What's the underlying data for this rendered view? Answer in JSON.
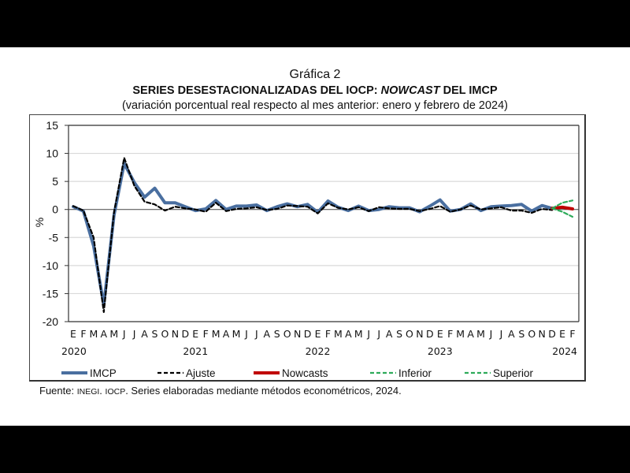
{
  "header": {
    "figure_label": "Gráfica 2",
    "title_part1": "SERIES DESESTACIONALIZADAS DEL IOCP",
    "title_colon": ": ",
    "title_italic": "NOWCAST",
    "title_part2": " DEL IMCP",
    "subtitle": "(variación porcentual real respecto al mes anterior: enero y febrero de 2024)"
  },
  "footer": {
    "source_label": "Fuente: ",
    "source_inegi": "INEGI",
    "source_sep": ". ",
    "source_iocp": "IOCP",
    "source_rest": ". Series elaboradas mediante métodos econométricos, 2024."
  },
  "colors": {
    "imcp": "#4a6fa0",
    "ajuste": "#000000",
    "nowcasts": "#c00000",
    "inferior": "#2eab5a",
    "superior": "#2eab5a",
    "grid": "#d9d9d9"
  },
  "chart_data": {
    "type": "line",
    "title": "SERIES DESESTACIONALIZADAS DEL IOCP: NOWCAST DEL IMCP",
    "ylabel": "%",
    "ylim": [
      -20,
      15
    ],
    "yticks": [
      "15",
      "10",
      "5",
      "0",
      "-5",
      "-10",
      "-15",
      "-20"
    ],
    "ytick_values": [
      15,
      10,
      5,
      0,
      -5,
      -10,
      -15,
      -20
    ],
    "grid": true,
    "legend_position": "bottom",
    "month_labels": [
      "E",
      "F",
      "M",
      "A",
      "M",
      "J",
      "J",
      "A",
      "S",
      "O",
      "N",
      "D",
      "E",
      "F",
      "M",
      "A",
      "M",
      "J",
      "J",
      "A",
      "S",
      "O",
      "N",
      "D",
      "E",
      "F",
      "M",
      "A",
      "M",
      "J",
      "J",
      "A",
      "S",
      "O",
      "N",
      "D",
      "E",
      "F",
      "M",
      "A",
      "M",
      "J",
      "J",
      "A",
      "S",
      "O",
      "N",
      "D",
      "E",
      "F"
    ],
    "year_labels": [
      {
        "label": "2020",
        "index": 0
      },
      {
        "label": "2021",
        "index": 12
      },
      {
        "label": "2022",
        "index": 24
      },
      {
        "label": "2023",
        "index": 36
      },
      {
        "label": "2024",
        "index": 49
      }
    ],
    "series": [
      {
        "name": "IMCP",
        "style": "solid",
        "start_index": 0,
        "values": [
          0.5,
          -0.3,
          -6.5,
          -17.0,
          -1.0,
          8.2,
          4.8,
          2.2,
          3.8,
          1.2,
          1.2,
          0.5,
          -0.2,
          0.1,
          1.6,
          0.0,
          0.6,
          0.6,
          0.8,
          -0.2,
          0.5,
          1.0,
          0.5,
          0.9,
          -0.5,
          1.5,
          0.4,
          -0.2,
          0.6,
          -0.2,
          0.0,
          0.5,
          0.3,
          0.3,
          -0.4,
          0.6,
          1.7,
          -0.3,
          0.0,
          1.0,
          -0.2,
          0.5,
          0.6,
          0.7,
          0.9,
          -0.3,
          0.7,
          0.2
        ]
      },
      {
        "name": "Ajuste",
        "style": "dashed",
        "start_index": 0,
        "values": [
          0.6,
          -0.2,
          -5.0,
          -18.3,
          -0.5,
          9.2,
          4.2,
          1.4,
          0.9,
          -0.2,
          0.5,
          0.2,
          0.0,
          -0.4,
          1.2,
          -0.3,
          0.1,
          0.2,
          0.4,
          -0.1,
          0.1,
          0.7,
          0.6,
          0.5,
          -0.7,
          1.1,
          0.3,
          0.0,
          0.4,
          -0.3,
          0.4,
          0.2,
          0.1,
          0.1,
          -0.3,
          0.1,
          0.6,
          -0.4,
          0.0,
          0.7,
          0.0,
          0.2,
          0.4,
          -0.2,
          -0.2,
          -0.6,
          0.1,
          -0.1
        ]
      },
      {
        "name": "Nowcasts",
        "style": "solid",
        "start_index": 47,
        "values": [
          0.2,
          0.4,
          0.1
        ]
      },
      {
        "name": "Inferior",
        "style": "dashed",
        "start_index": 47,
        "values": [
          0.2,
          -0.4,
          -1.3
        ]
      },
      {
        "name": "Superior",
        "style": "dashed",
        "start_index": 47,
        "values": [
          0.2,
          1.2,
          1.6
        ]
      }
    ]
  }
}
